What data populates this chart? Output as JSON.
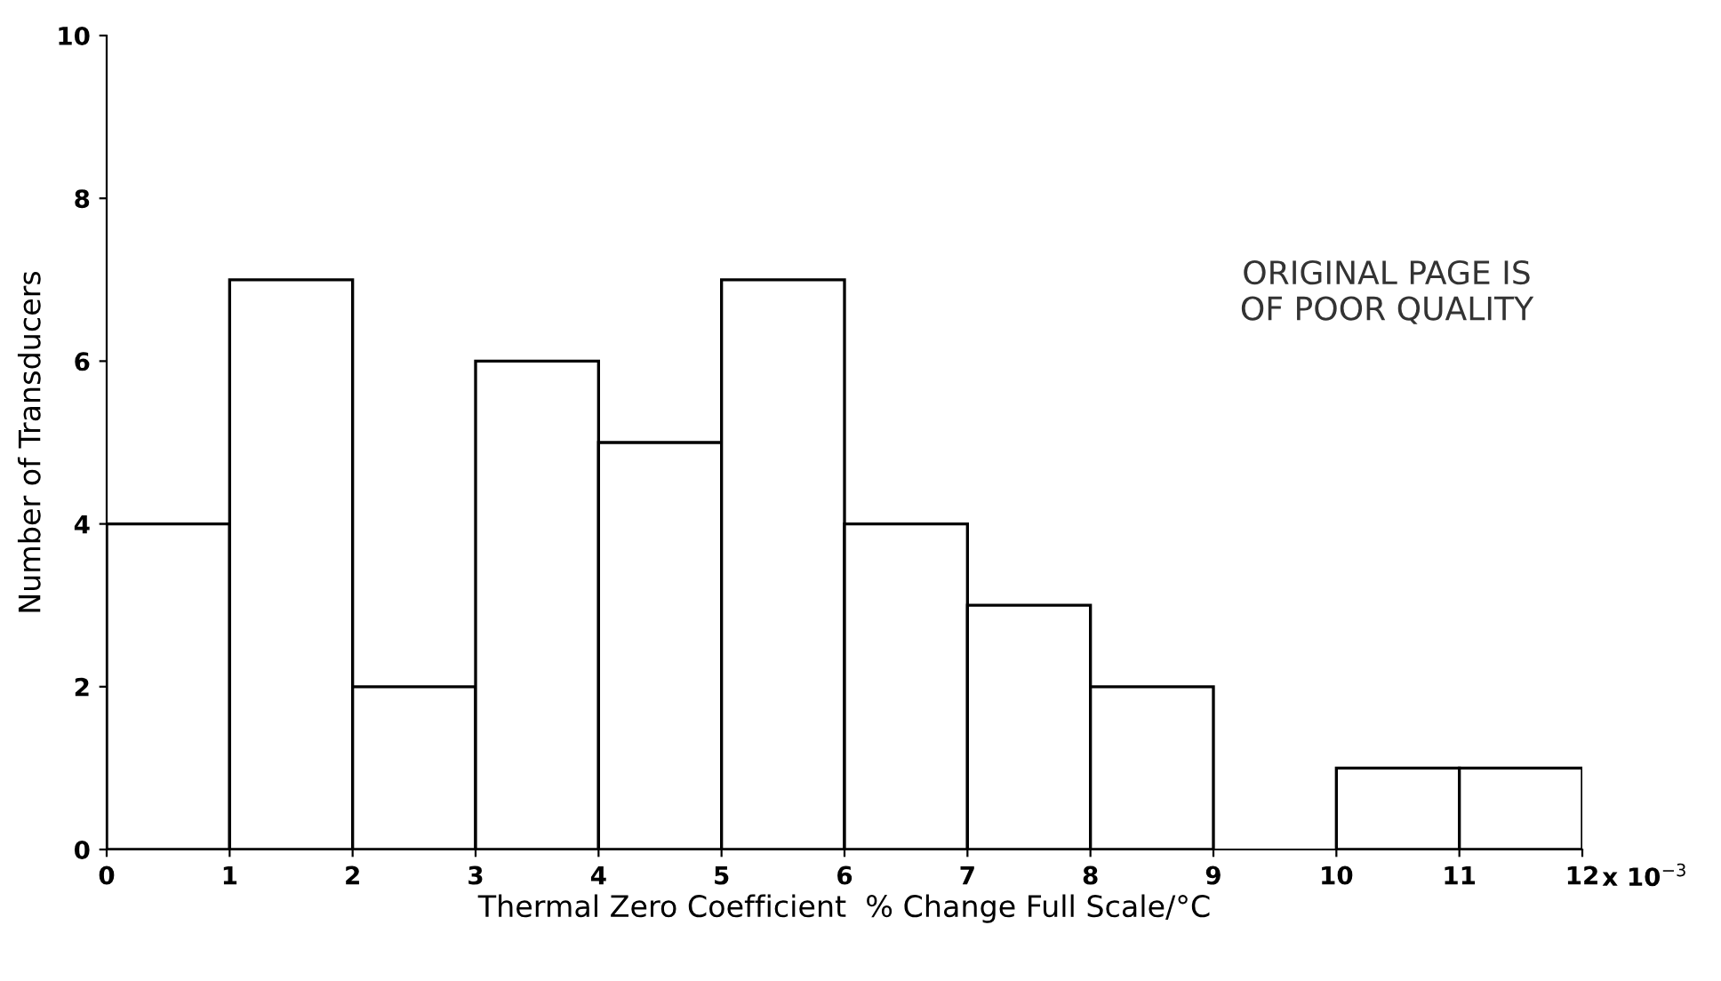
{
  "chart_data": {
    "type": "histogram",
    "xlabel": "Thermal Zero Coefficient  % Change Full Scale/°C",
    "ylabel": "Number of Transducers",
    "bins": [
      0,
      1,
      2,
      3,
      4,
      5,
      6,
      7,
      8,
      9,
      10,
      11,
      12
    ],
    "values": [
      4,
      7,
      2,
      6,
      5,
      7,
      4,
      3,
      2,
      0,
      1,
      1
    ],
    "color": "#ffffff",
    "xlim": [
      0,
      12
    ],
    "xticks": [
      0,
      1,
      2,
      3,
      4,
      5,
      6,
      7,
      8,
      9,
      10,
      11,
      12
    ],
    "ylim": [
      0,
      10
    ],
    "yticks": [
      0,
      2,
      4,
      6,
      8,
      10
    ],
    "grid": false,
    "annotations": [
      "ORIGINAL PAGE IS\nOF POOR QUALITY",
      "x 10$^{−3}$"
    ]
  }
}
